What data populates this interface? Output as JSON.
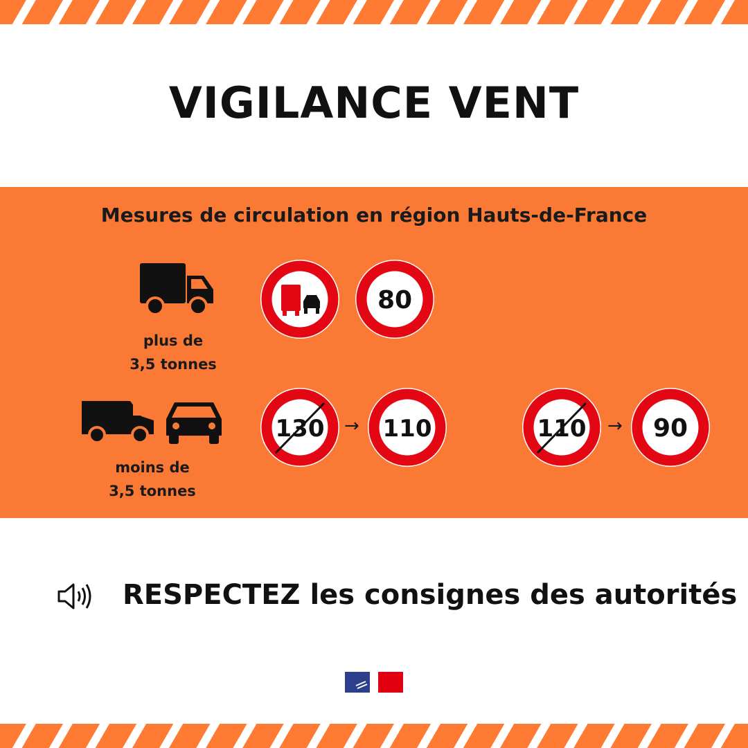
{
  "title": "VIGILANCE VENT",
  "panel": {
    "heading": "Mesures de circulation en région Hauts-de-France",
    "heavy": {
      "label_line1": "plus de",
      "label_line2": "3,5 tonnes",
      "signs": [
        "no-overtaking-trucks",
        "80"
      ]
    },
    "light": {
      "label_line1": "moins de",
      "label_line2": "3,5 tonnes",
      "change1": {
        "from": "130",
        "to": "110"
      },
      "change2": {
        "from": "110",
        "to": "90"
      },
      "arrow": "→"
    }
  },
  "footer": {
    "text": "RESPECTEZ les consignes des autorités",
    "icon": "speaker-icon"
  },
  "colors": {
    "orange": "#fa7a35",
    "sign_red": "#e30613"
  }
}
